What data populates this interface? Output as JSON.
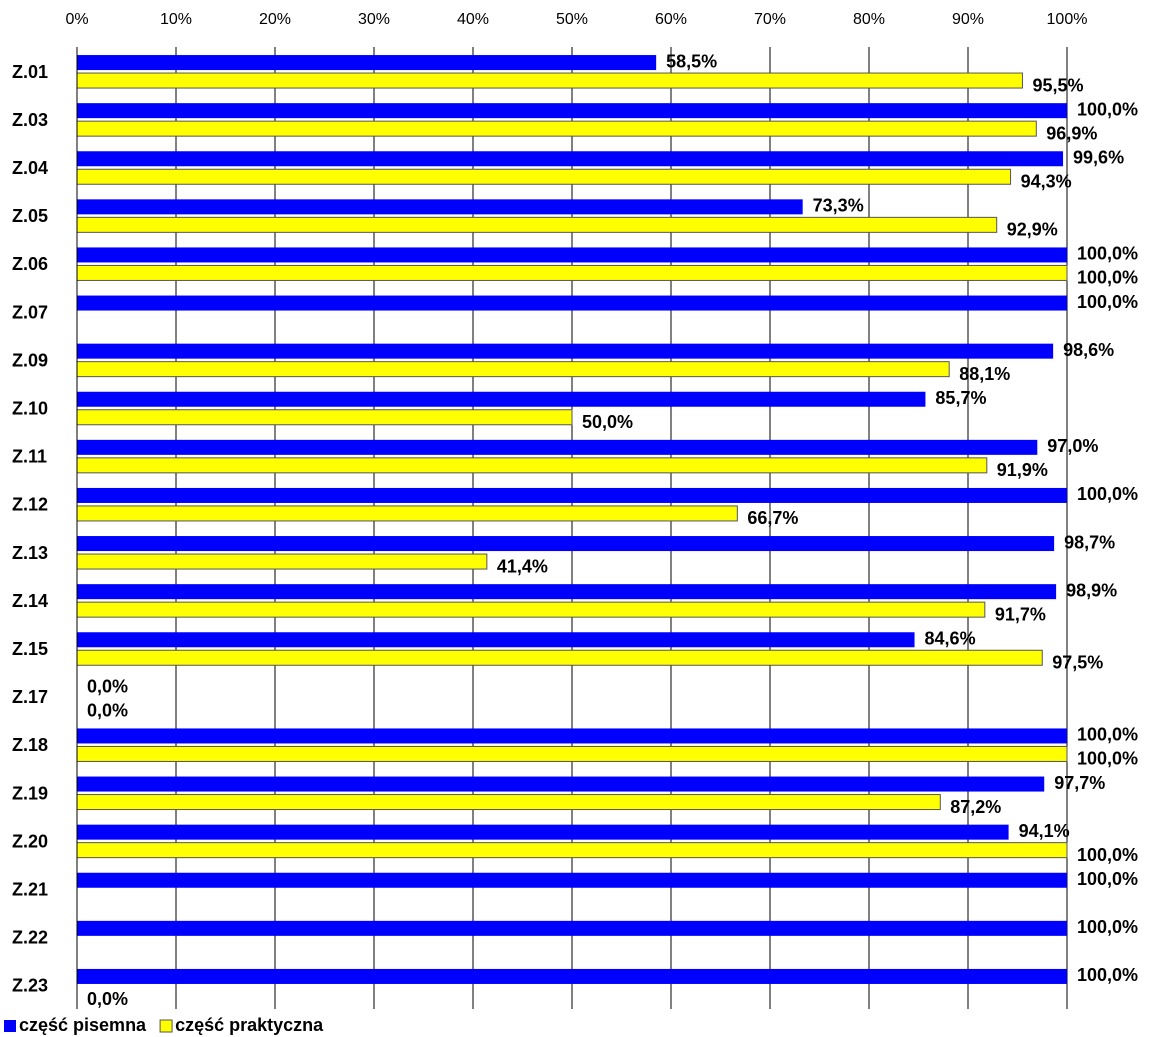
{
  "chart_data": {
    "type": "bar",
    "orientation": "horizontal",
    "categories": [
      "Z.01",
      "Z.03",
      "Z.04",
      "Z.05",
      "Z.06",
      "Z.07",
      "Z.09",
      "Z.10",
      "Z.11",
      "Z.12",
      "Z.13",
      "Z.14",
      "Z.15",
      "Z.17",
      "Z.18",
      "Z.19",
      "Z.20",
      "Z.21",
      "Z.22",
      "Z.23"
    ],
    "series": [
      {
        "name": "część pisemna",
        "color": "#0000ff",
        "values": [
          58.5,
          100,
          99.6,
          73.3,
          100,
          100,
          98.6,
          85.7,
          97.0,
          100,
          98.7,
          98.9,
          84.6,
          0,
          100,
          97.7,
          94.1,
          100,
          100,
          100
        ],
        "value_labels": [
          "58,5%",
          "100,0%",
          "99,6%",
          "73,3%",
          "100,0%",
          "100,0%",
          "98,6%",
          "85,7%",
          "97,0%",
          "100,0%",
          "98,7%",
          "98,9%",
          "84,6%",
          "0,0%",
          "100,0%",
          "97,7%",
          "94,1%",
          "100,0%",
          "100,0%",
          "100,0%"
        ]
      },
      {
        "name": "część praktyczna",
        "color": "#ffff00",
        "values": [
          95.5,
          96.9,
          94.3,
          92.9,
          100,
          null,
          88.1,
          50.0,
          91.9,
          66.7,
          41.4,
          91.7,
          97.5,
          0,
          100,
          87.2,
          100,
          null,
          null,
          0
        ],
        "value_labels": [
          "95,5%",
          "96,9%",
          "94,3%",
          "92,9%",
          "100,0%",
          null,
          "88,1%",
          "50,0%",
          "91,9%",
          "66,7%",
          "41,4%",
          "91,7%",
          "97,5%",
          "0,0%",
          "100,0%",
          "87,2%",
          "100,0%",
          null,
          null,
          "0,0%"
        ]
      }
    ],
    "xlim": [
      0,
      100
    ],
    "xticks": [
      {
        "value": 0,
        "label": "0%"
      },
      {
        "value": 10,
        "label": "10%"
      },
      {
        "value": 20,
        "label": "20%"
      },
      {
        "value": 30,
        "label": "30%"
      },
      {
        "value": 40,
        "label": "40%"
      },
      {
        "value": 50,
        "label": "50%"
      },
      {
        "value": 60,
        "label": "60%"
      },
      {
        "value": 70,
        "label": "70%"
      },
      {
        "value": 80,
        "label": "80%"
      },
      {
        "value": 90,
        "label": "90%"
      },
      {
        "value": 100,
        "label": "100%"
      }
    ],
    "grid": true,
    "legend": "bottom-left"
  }
}
